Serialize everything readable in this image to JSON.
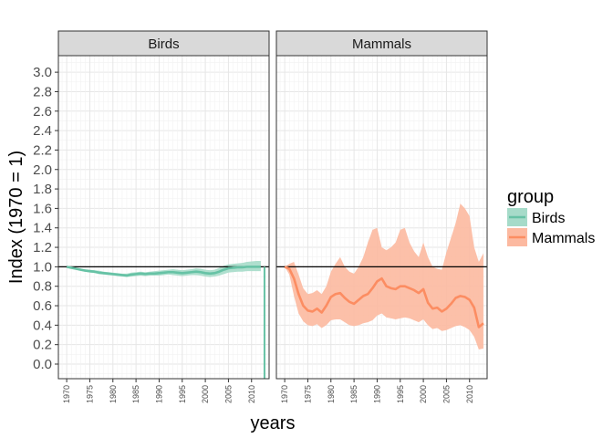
{
  "chart_data": {
    "type": "line",
    "ylabel": "Index (1970 = 1)",
    "xlabel": "years",
    "ylim": [
      -0.15,
      3.17
    ],
    "xlim": [
      1968.2,
      2013.8
    ],
    "y_ticks": [
      "0.0",
      "0.2",
      "0.4",
      "0.6",
      "0.8",
      "1.0",
      "1.2",
      "1.4",
      "1.6",
      "1.8",
      "2.0",
      "2.2",
      "2.4",
      "2.6",
      "2.8",
      "3.0"
    ],
    "x_ticks": [
      "1970",
      "1975",
      "1980",
      "1985",
      "1990",
      "1995",
      "2000",
      "2005",
      "2010"
    ],
    "reference_line": 1.0,
    "legend": {
      "title": "group",
      "entries": [
        {
          "label": "Birds",
          "color": "#66c2a5",
          "fill": "#a6dbc9"
        },
        {
          "label": "Mammals",
          "color": "#fc8d62",
          "fill": "#fcb9a0"
        }
      ]
    },
    "panels": [
      {
        "strip": "Birds",
        "series_name": "Birds",
        "line_color": "#66c2a5",
        "band_color": "#a6dbc9",
        "x": [
          1970,
          1971,
          1972,
          1973,
          1974,
          1975,
          1976,
          1977,
          1978,
          1979,
          1980,
          1981,
          1982,
          1983,
          1984,
          1985,
          1986,
          1987,
          1988,
          1989,
          1990,
          1991,
          1992,
          1993,
          1994,
          1995,
          1996,
          1997,
          1998,
          1999,
          2000,
          2001,
          2002,
          2003,
          2004,
          2005,
          2006,
          2007,
          2008,
          2009,
          2010,
          2011,
          2012
        ],
        "y": [
          1.0,
          0.99,
          0.98,
          0.97,
          0.96,
          0.955,
          0.95,
          0.94,
          0.935,
          0.93,
          0.925,
          0.92,
          0.915,
          0.91,
          0.92,
          0.925,
          0.93,
          0.925,
          0.93,
          0.93,
          0.935,
          0.94,
          0.945,
          0.945,
          0.94,
          0.935,
          0.94,
          0.945,
          0.95,
          0.945,
          0.935,
          0.93,
          0.935,
          0.95,
          0.97,
          0.985,
          0.99,
          0.995,
          0.995,
          1.0,
          1.0,
          1.0,
          1.0
        ],
        "lower": [
          1.0,
          0.985,
          0.97,
          0.96,
          0.95,
          0.94,
          0.935,
          0.925,
          0.92,
          0.915,
          0.91,
          0.905,
          0.9,
          0.895,
          0.9,
          0.905,
          0.91,
          0.905,
          0.91,
          0.91,
          0.91,
          0.915,
          0.92,
          0.915,
          0.91,
          0.905,
          0.91,
          0.915,
          0.915,
          0.91,
          0.9,
          0.895,
          0.9,
          0.91,
          0.925,
          0.94,
          0.945,
          0.95,
          0.95,
          0.955,
          0.955,
          0.955,
          0.955
        ],
        "upper": [
          1.0,
          0.995,
          0.99,
          0.98,
          0.975,
          0.97,
          0.965,
          0.96,
          0.95,
          0.945,
          0.94,
          0.935,
          0.93,
          0.93,
          0.94,
          0.945,
          0.95,
          0.945,
          0.95,
          0.955,
          0.96,
          0.965,
          0.97,
          0.975,
          0.97,
          0.965,
          0.97,
          0.975,
          0.985,
          0.98,
          0.97,
          0.965,
          0.97,
          0.99,
          1.01,
          1.025,
          1.03,
          1.035,
          1.04,
          1.05,
          1.055,
          1.06,
          1.06
        ],
        "drop_at_end": {
          "x": 2012.8,
          "from": 1.0,
          "to": -0.15
        }
      },
      {
        "strip": "Mammals",
        "series_name": "Mammals",
        "line_color": "#fc8d62",
        "band_color": "#fcb9a0",
        "x": [
          1970,
          1971,
          1972,
          1973,
          1974,
          1975,
          1976,
          1977,
          1978,
          1979,
          1980,
          1981,
          1982,
          1983,
          1984,
          1985,
          1986,
          1987,
          1988,
          1989,
          1990,
          1991,
          1992,
          1993,
          1994,
          1995,
          1996,
          1997,
          1998,
          1999,
          2000,
          2001,
          2002,
          2003,
          2004,
          2005,
          2006,
          2007,
          2008,
          2009,
          2010,
          2011,
          2012,
          2013
        ],
        "y": [
          1.0,
          0.98,
          0.88,
          0.72,
          0.6,
          0.55,
          0.54,
          0.57,
          0.53,
          0.6,
          0.69,
          0.72,
          0.73,
          0.68,
          0.64,
          0.62,
          0.66,
          0.7,
          0.72,
          0.78,
          0.85,
          0.88,
          0.8,
          0.78,
          0.77,
          0.8,
          0.8,
          0.78,
          0.76,
          0.73,
          0.77,
          0.63,
          0.57,
          0.58,
          0.54,
          0.57,
          0.62,
          0.68,
          0.7,
          0.69,
          0.66,
          0.58,
          0.38,
          0.42
        ],
        "lower": [
          1.0,
          0.92,
          0.7,
          0.52,
          0.44,
          0.4,
          0.39,
          0.41,
          0.37,
          0.4,
          0.45,
          0.46,
          0.46,
          0.43,
          0.4,
          0.39,
          0.4,
          0.42,
          0.43,
          0.45,
          0.5,
          0.52,
          0.48,
          0.47,
          0.46,
          0.47,
          0.48,
          0.47,
          0.45,
          0.43,
          0.46,
          0.4,
          0.36,
          0.37,
          0.34,
          0.35,
          0.37,
          0.39,
          0.4,
          0.38,
          0.35,
          0.28,
          0.15,
          0.16
        ],
        "upper": [
          1.0,
          1.03,
          1.05,
          0.92,
          0.78,
          0.72,
          0.73,
          0.76,
          0.72,
          0.8,
          0.95,
          1.03,
          1.1,
          1.0,
          0.95,
          0.93,
          1.0,
          1.1,
          1.25,
          1.38,
          1.4,
          1.2,
          1.17,
          1.2,
          1.25,
          1.38,
          1.4,
          1.25,
          1.16,
          1.1,
          1.25,
          1.1,
          1.0,
          0.98,
          0.97,
          1.15,
          1.3,
          1.45,
          1.65,
          1.6,
          1.52,
          1.2,
          1.05,
          1.14
        ]
      }
    ]
  }
}
